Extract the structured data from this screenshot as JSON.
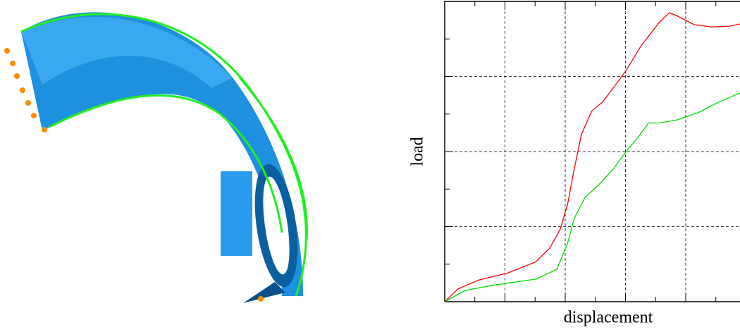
{
  "chart_data": {
    "type": "line",
    "x_label": "displacement",
    "y_label": "load",
    "xlim": [
      0,
      4.9
    ],
    "ylim": [
      0,
      4
    ],
    "xticks": [
      0,
      1,
      2,
      3,
      4
    ],
    "yticks": [
      0,
      1,
      2,
      3,
      4
    ],
    "x_minor_ticks": [
      0.5,
      1.5,
      2.5,
      3.5,
      4.5
    ],
    "y_minor_ticks": [
      0.5,
      1.5,
      2.5,
      3.5
    ],
    "grid": true,
    "series": [
      {
        "color": "#ff0000",
        "x": [
          0,
          0.22,
          0.57,
          1.04,
          1.51,
          1.74,
          1.92,
          2.04,
          2.15,
          2.27,
          2.44,
          2.62,
          2.8,
          3.01,
          3.26,
          3.56,
          3.73,
          3.85,
          4.14,
          4.43,
          4.73,
          4.9
        ],
        "values": [
          0,
          0.17,
          0.29,
          0.38,
          0.53,
          0.71,
          0.97,
          1.3,
          1.77,
          2.23,
          2.54,
          2.66,
          2.85,
          3.08,
          3.41,
          3.72,
          3.85,
          3.81,
          3.69,
          3.66,
          3.67,
          3.7
        ]
      },
      {
        "color": "#00dd00",
        "x": [
          0,
          0.34,
          0.81,
          1.51,
          1.86,
          2.04,
          2.15,
          2.33,
          2.56,
          2.8,
          3.01,
          3.21,
          3.38,
          3.56,
          3.85,
          4.21,
          4.55,
          4.9
        ],
        "values": [
          0,
          0.15,
          0.22,
          0.3,
          0.43,
          0.78,
          1.11,
          1.39,
          1.56,
          1.77,
          2.0,
          2.19,
          2.38,
          2.38,
          2.42,
          2.52,
          2.66,
          2.78
        ]
      }
    ]
  }
}
